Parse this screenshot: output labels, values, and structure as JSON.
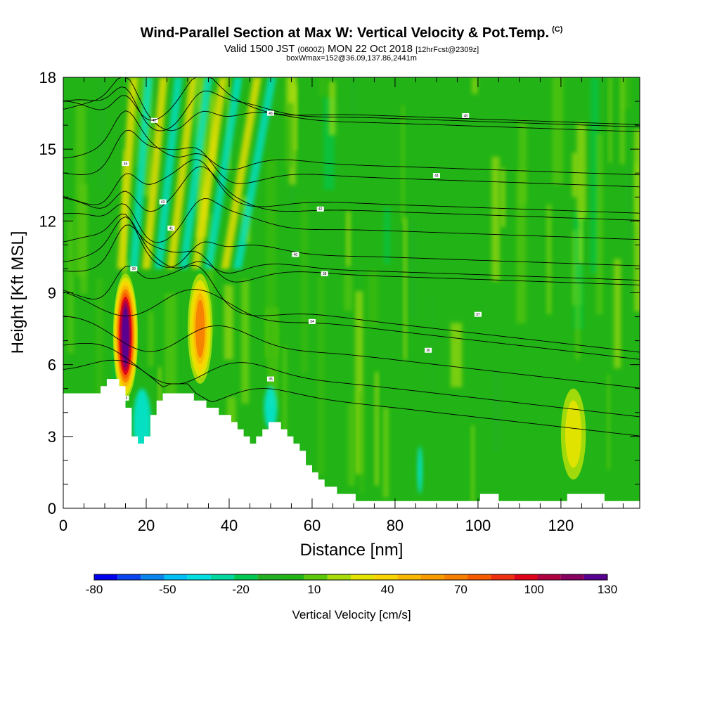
{
  "header": {
    "title": "Wind-Parallel Section at Max W: Vertical Velocity & Pot.Temp.",
    "title_suffix": "(C)",
    "subtitle_a": "Valid 1500 JST",
    "subtitle_b": "(0600Z)",
    "subtitle_c": "MON 22 Oct 2018",
    "subtitle_d": "[12hrFcst@2309z]",
    "subtitle2": "boxWmax=152@36.09,137.86,2441m"
  },
  "chart_data": {
    "type": "heatmap",
    "xlabel": "Distance [nm]",
    "ylabel": "Height [Kft MSL]",
    "xlim": [
      0,
      139
    ],
    "ylim": [
      0,
      18
    ],
    "xticks": [
      "0",
      "20",
      "40",
      "60",
      "80",
      "100",
      "120"
    ],
    "xtick_values": [
      0,
      20,
      40,
      60,
      80,
      100,
      120
    ],
    "yticks": [
      "0",
      "3",
      "6",
      "9",
      "12",
      "15",
      "18"
    ],
    "ytick_values": [
      0,
      3,
      6,
      9,
      12,
      15,
      18
    ],
    "colorbar": {
      "title": "Vertical Velocity [cm/s]",
      "labels": [
        "-80",
        "-50",
        "-20",
        "10",
        "40",
        "70",
        "100",
        "130"
      ],
      "label_values": [
        -80,
        -50,
        -20,
        10,
        40,
        70,
        100,
        130
      ],
      "colors": [
        "#0000ee",
        "#0a44ee",
        "#0a84ee",
        "#00c0f8",
        "#00e0e0",
        "#00d8a0",
        "#00c850",
        "#22b022",
        "#22b416",
        "#5cc80a",
        "#a8dc0a",
        "#e4e400",
        "#f8d400",
        "#f8b800",
        "#f89c00",
        "#f88000",
        "#f85c00",
        "#f03010",
        "#e00018",
        "#b00040",
        "#880060",
        "#580090"
      ]
    },
    "updrafts": [
      {
        "x": 15,
        "y_bottom": 4.6,
        "y_top": 9.8,
        "w_max": 152
      },
      {
        "x": 33,
        "y_bottom": 5.2,
        "y_top": 9.8,
        "w_max": 70
      },
      {
        "x": 123,
        "y_bottom": 1.2,
        "y_top": 5.0,
        "w_max": 35
      }
    ],
    "terrain_kft": [
      [
        0,
        4.8
      ],
      [
        8,
        4.8
      ],
      [
        9,
        5.0
      ],
      [
        11,
        5.4
      ],
      [
        14,
        5.0
      ],
      [
        16,
        3.6
      ],
      [
        17,
        2.6
      ],
      [
        19,
        2.6
      ],
      [
        20,
        3.4
      ],
      [
        22,
        4.6
      ],
      [
        26,
        4.9
      ],
      [
        30,
        4.9
      ],
      [
        32,
        4.5
      ],
      [
        36,
        4.1
      ],
      [
        40,
        3.8
      ],
      [
        43,
        3.0
      ],
      [
        45,
        2.6
      ],
      [
        47,
        3.2
      ],
      [
        50,
        3.6
      ],
      [
        53,
        3.4
      ],
      [
        56,
        2.6
      ],
      [
        59,
        1.6
      ],
      [
        62,
        1.0
      ],
      [
        66,
        0.6
      ],
      [
        70,
        0.4
      ],
      [
        100,
        0.4
      ],
      [
        102,
        0.6
      ],
      [
        105,
        0.4
      ],
      [
        120,
        0.4
      ],
      [
        122,
        0.7
      ],
      [
        128,
        0.7
      ],
      [
        130,
        0.4
      ],
      [
        139,
        0.4
      ]
    ],
    "isentropes": [
      {
        "label": "33",
        "x": 15,
        "y": 4.6
      },
      {
        "label": "34",
        "x": 60,
        "y": 7.8
      },
      {
        "label": "35",
        "x": 50,
        "y": 5.4
      },
      {
        "label": "36",
        "x": 88,
        "y": 6.6
      },
      {
        "label": "37",
        "x": 100,
        "y": 8.1
      },
      {
        "label": "38",
        "x": 63,
        "y": 9.8
      },
      {
        "label": "39",
        "x": 17,
        "y": 10.0
      },
      {
        "label": "40",
        "x": 56,
        "y": 10.6
      },
      {
        "label": "41",
        "x": 26,
        "y": 11.7
      },
      {
        "label": "42",
        "x": 62,
        "y": 12.5
      },
      {
        "label": "43",
        "x": 24,
        "y": 12.8
      },
      {
        "label": "44",
        "x": 90,
        "y": 13.9
      },
      {
        "label": "45",
        "x": 15,
        "y": 14.4
      },
      {
        "label": "46",
        "x": 50,
        "y": 16.5
      },
      {
        "label": "47",
        "x": 22,
        "y": 16.2
      },
      {
        "label": "48",
        "x": 97,
        "y": 16.4
      }
    ]
  }
}
